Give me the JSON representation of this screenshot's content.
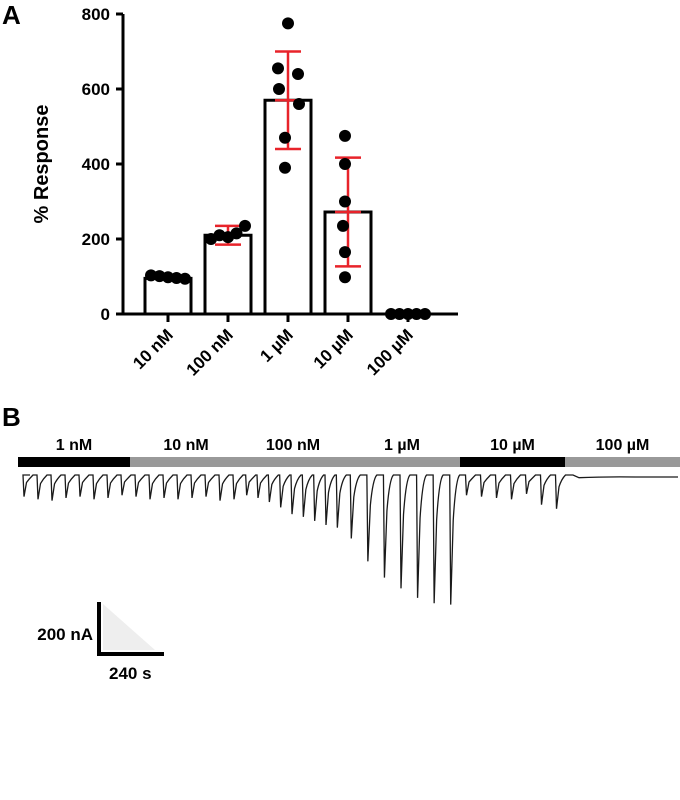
{
  "panel_a_label": "A",
  "panel_b_label": "B",
  "chart_data": [
    {
      "type": "bar",
      "title": "",
      "xlabel": "",
      "ylabel": "% Response",
      "ylim": [
        0,
        800
      ],
      "yticks": [
        "0",
        "200",
        "400",
        "600",
        "800"
      ],
      "categories": [
        "10 nM",
        "100 nM",
        "1 µM",
        "10 µM",
        "100 µM"
      ],
      "values": [
        95,
        210,
        570,
        272,
        0
      ],
      "error_sd": [
        0,
        25,
        130,
        145,
        0
      ],
      "points": [
        [
          103,
          101,
          98,
          96,
          94
        ],
        [
          200,
          210,
          205,
          215,
          235
        ],
        [
          775,
          655,
          640,
          600,
          560,
          470,
          390
        ],
        [
          475,
          400,
          300,
          235,
          165,
          98
        ],
        [
          0,
          0,
          0,
          0,
          0
        ]
      ],
      "colors": {
        "bar_fill": "#ffffff",
        "bar_stroke": "#000000",
        "points": "#000000",
        "error_bars": "#e8232a"
      }
    },
    {
      "type": "line",
      "title": "",
      "segments": [
        {
          "label": "1 nM",
          "color": "#000000",
          "peaks_nA": [
            80,
            90,
            95,
            85,
            80,
            90,
            85,
            75
          ]
        },
        {
          "label": "10 nM",
          "color": "#999999",
          "peaks_nA": [
            80,
            90,
            85,
            90,
            85,
            80,
            95,
            90
          ]
        },
        {
          "label": "100 nM",
          "color": "#999999",
          "peaks_nA": [
            75,
            85,
            100,
            120,
            145,
            155,
            170,
            185,
            195
          ]
        },
        {
          "label": "1 µM",
          "color": "#999999",
          "peaks_nA": [
            235,
            320,
            380,
            420,
            455,
            475,
            480
          ]
        },
        {
          "label": "10 µM",
          "color": "#000000",
          "peaks_nA": [
            75,
            80,
            85,
            90,
            70,
            110,
            125
          ]
        },
        {
          "label": "100 µM",
          "color": "#999999",
          "peaks_nA": [
            10
          ]
        }
      ],
      "scale_bar": {
        "current_label": "200 nA",
        "time_label": "240 s"
      }
    }
  ]
}
